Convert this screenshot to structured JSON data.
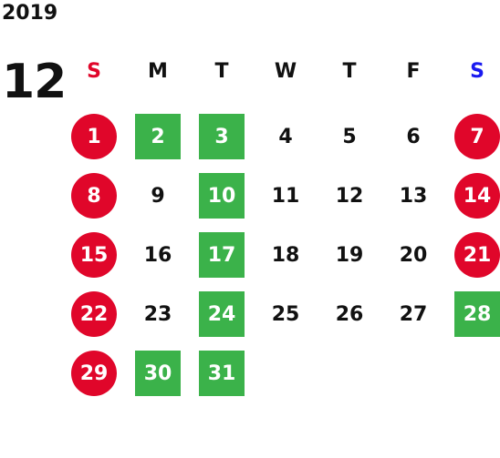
{
  "year": "2019",
  "month": "12",
  "colors": {
    "holiday": "#e0062a",
    "special": "#3bb24a",
    "sun_label": "#e0062a",
    "sat_label": "#1a1af0",
    "text": "#111111"
  },
  "weekdays": [
    "S",
    "M",
    "T",
    "W",
    "T",
    "F",
    "S"
  ],
  "weeks": [
    [
      {
        "day": "1",
        "type": "holiday"
      },
      {
        "day": "2",
        "type": "special"
      },
      {
        "day": "3",
        "type": "special"
      },
      {
        "day": "4",
        "type": "normal"
      },
      {
        "day": "5",
        "type": "normal"
      },
      {
        "day": "6",
        "type": "normal"
      },
      {
        "day": "7",
        "type": "holiday"
      }
    ],
    [
      {
        "day": "8",
        "type": "holiday"
      },
      {
        "day": "9",
        "type": "normal"
      },
      {
        "day": "10",
        "type": "special"
      },
      {
        "day": "11",
        "type": "normal"
      },
      {
        "day": "12",
        "type": "normal"
      },
      {
        "day": "13",
        "type": "normal"
      },
      {
        "day": "14",
        "type": "holiday"
      }
    ],
    [
      {
        "day": "15",
        "type": "holiday"
      },
      {
        "day": "16",
        "type": "normal"
      },
      {
        "day": "17",
        "type": "special"
      },
      {
        "day": "18",
        "type": "normal"
      },
      {
        "day": "19",
        "type": "normal"
      },
      {
        "day": "20",
        "type": "normal"
      },
      {
        "day": "21",
        "type": "holiday"
      }
    ],
    [
      {
        "day": "22",
        "type": "holiday"
      },
      {
        "day": "23",
        "type": "normal"
      },
      {
        "day": "24",
        "type": "special"
      },
      {
        "day": "25",
        "type": "normal"
      },
      {
        "day": "26",
        "type": "normal"
      },
      {
        "day": "27",
        "type": "normal"
      },
      {
        "day": "28",
        "type": "special"
      }
    ],
    [
      {
        "day": "29",
        "type": "holiday"
      },
      {
        "day": "30",
        "type": "special"
      },
      {
        "day": "31",
        "type": "special"
      },
      {
        "day": "",
        "type": "empty"
      },
      {
        "day": "",
        "type": "empty"
      },
      {
        "day": "",
        "type": "empty"
      },
      {
        "day": "",
        "type": "empty"
      }
    ]
  ]
}
